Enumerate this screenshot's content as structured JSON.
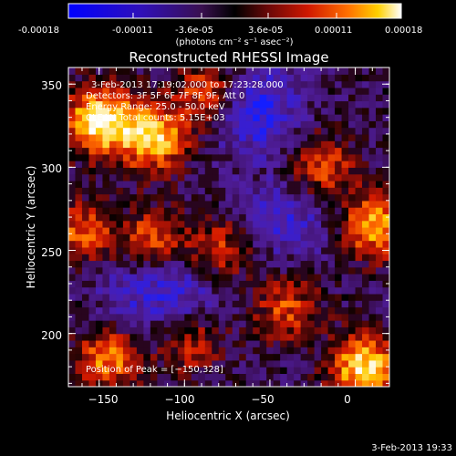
{
  "colorbar": {
    "ticks": [
      "-0.00018",
      "-0.00011",
      "-3.6e-05",
      "3.6e-05",
      "0.00011",
      "0.00018"
    ],
    "tick_values": [
      -0.00018,
      -0.00011,
      -3.6e-05,
      3.6e-05,
      0.00011,
      0.00018
    ],
    "range": [
      -0.00018,
      0.00018
    ],
    "units": "(photons cm⁻² s⁻¹ asec⁻²)",
    "colors": [
      "#0000ff",
      "#3000c0",
      "#5a1f8a",
      "#2a0a20",
      "#000000",
      "#7a0a0a",
      "#d01a00",
      "#ff6a00",
      "#ffc800",
      "#ffffff"
    ]
  },
  "chart_data": {
    "type": "heatmap",
    "title": "Reconstructed RHESSI Image",
    "xlabel": "Heliocentric X (arcsec)",
    "ylabel": "Heliocentric Y (arcsec)",
    "xlim": [
      -168,
      20
    ],
    "ylim": [
      168,
      360
    ],
    "x_ticks": [
      -150,
      -100,
      -50,
      0
    ],
    "y_ticks": [
      200,
      250,
      300,
      350
    ],
    "x_tick_labels": [
      "−150",
      "−100",
      "−50",
      "0"
    ],
    "y_tick_labels": [
      "200",
      "250",
      "300",
      "350"
    ],
    "annotations": [
      "3-Feb-2013 17:19:02.000 to 17:23:28.000",
      "Detectors: 3F 5F 6F 7F 8F 9F, Att 0",
      "Energy Range: 25.0 - 50.0 keV",
      "CLEAN    Total counts: 5.15E+03"
    ],
    "peak_label": "Position of Peak = [−150,328]",
    "peak_position": [
      -150,
      328
    ],
    "emission_sources": [
      {
        "x": -150,
        "y": 328,
        "intensity": 1.0
      },
      {
        "x": -118,
        "y": 318,
        "intensity": 0.85
      },
      {
        "x": -85,
        "y": 345,
        "intensity": 0.6
      },
      {
        "x": -20,
        "y": 300,
        "intensity": 0.55
      },
      {
        "x": 12,
        "y": 265,
        "intensity": 0.75
      },
      {
        "x": -120,
        "y": 255,
        "intensity": 0.6
      },
      {
        "x": -160,
        "y": 260,
        "intensity": 0.55
      },
      {
        "x": -80,
        "y": 250,
        "intensity": 0.5
      },
      {
        "x": -40,
        "y": 215,
        "intensity": 0.5
      },
      {
        "x": 5,
        "y": 180,
        "intensity": 0.9
      },
      {
        "x": -145,
        "y": 185,
        "intensity": 0.65
      },
      {
        "x": -95,
        "y": 195,
        "intensity": 0.45
      }
    ],
    "negative_regions": [
      {
        "x": -60,
        "y": 335,
        "intensity": 0.9
      },
      {
        "x": -40,
        "y": 270,
        "intensity": 0.6
      },
      {
        "x": -100,
        "y": 225,
        "intensity": 0.55
      },
      {
        "x": -130,
        "y": 230,
        "intensity": 0.5
      }
    ]
  },
  "footer": {
    "timestamp": "3-Feb-2013 19:33"
  }
}
